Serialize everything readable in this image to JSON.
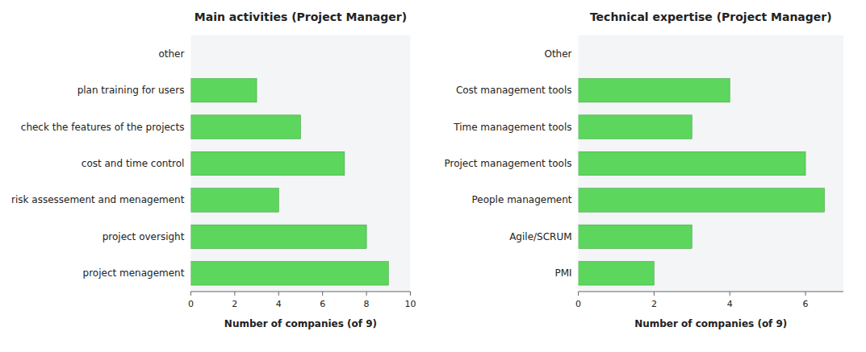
{
  "chart_data": [
    {
      "type": "bar",
      "orientation": "horizontal",
      "title": "Main activities (Project Manager)",
      "categories": [
        "other",
        "plan training for users",
        "check the features of the projects",
        "cost and time control",
        "risk assessement and menagement",
        "project oversight",
        "project menagement"
      ],
      "values": [
        0,
        3,
        5,
        7,
        4,
        8,
        9
      ],
      "color": "#5cd65c",
      "xlim": [
        0,
        10
      ],
      "xticks": [
        0,
        2,
        4,
        6,
        8,
        10
      ],
      "xlabel": "Number of companies (of 9)",
      "grid": false
    },
    {
      "type": "bar",
      "orientation": "horizontal",
      "title": "Technical expertise (Project Manager)",
      "categories": [
        "Other",
        "Cost management tools",
        "Time management tools",
        "Project management tools",
        "People management",
        "Agile/SCRUM",
        "PMI"
      ],
      "values": [
        0,
        4,
        3,
        6,
        6.5,
        3,
        2
      ],
      "color": "#5cd65c",
      "xlim": [
        0,
        7
      ],
      "xticks": [
        0,
        2,
        4,
        6
      ],
      "xlabel": "Number of companies (of 9)",
      "grid": false
    }
  ]
}
